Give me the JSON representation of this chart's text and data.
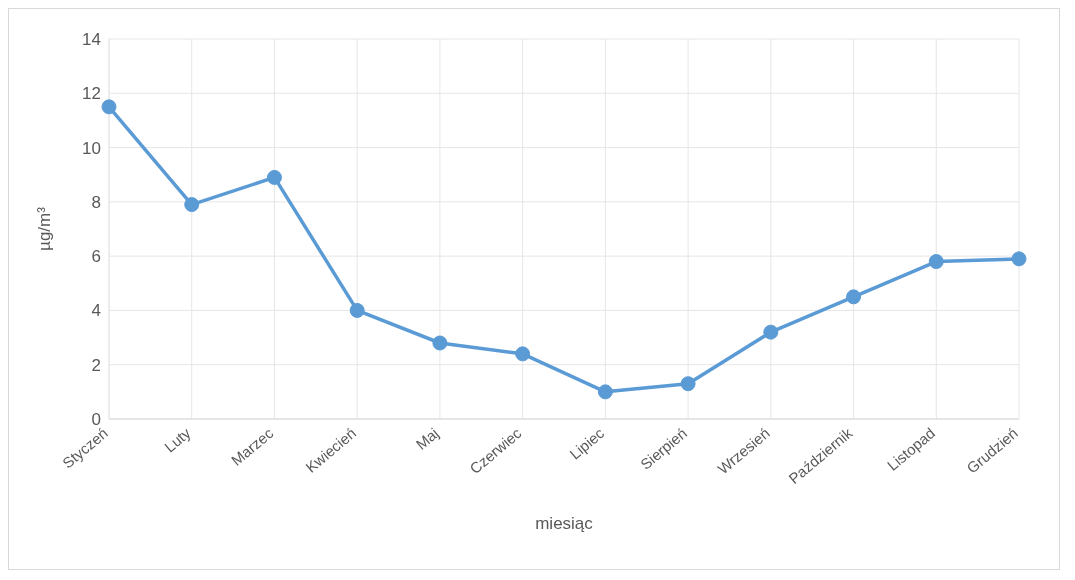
{
  "chart_data": {
    "type": "line",
    "xlabel": "miesiąc",
    "ylabel": "µg/m³",
    "categories": [
      "Styczeń",
      "Luty",
      "Marzec",
      "Kwiecień",
      "Maj",
      "Czerwiec",
      "Lipiec",
      "Sierpień",
      "Wrzesień",
      "Październik",
      "Listopad",
      "Grudzień"
    ],
    "series": [
      {
        "color": "#5b9bd5",
        "values": [
          11.5,
          7.9,
          8.9,
          4.0,
          2.8,
          2.4,
          1.0,
          1.3,
          3.2,
          4.5,
          5.8,
          5.9
        ]
      }
    ],
    "ylim": [
      0,
      14
    ],
    "yticks": [
      0,
      2,
      4,
      6,
      8,
      10,
      12,
      14
    ],
    "grid": true,
    "legend": false,
    "marker": "circle",
    "line_style": "solid"
  }
}
